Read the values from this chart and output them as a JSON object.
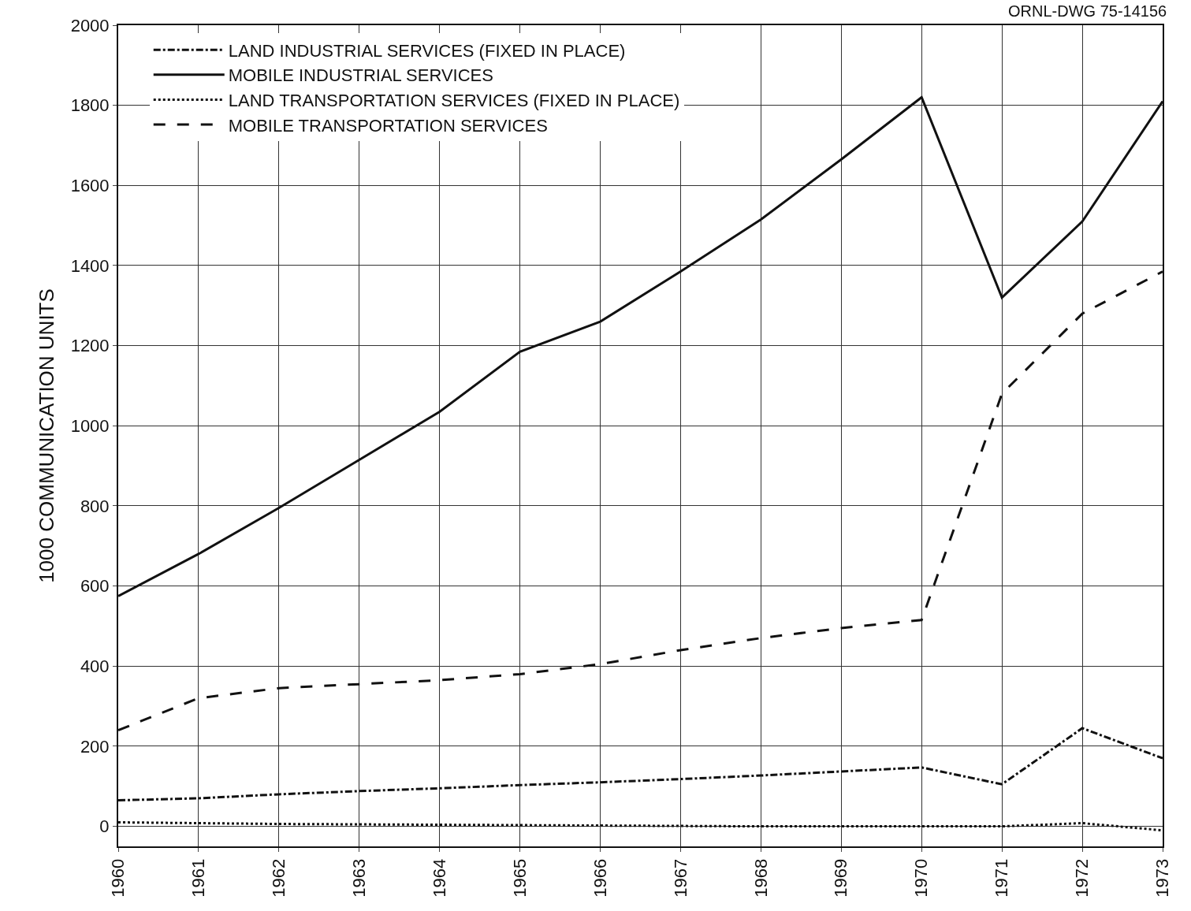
{
  "chart_data": {
    "type": "line",
    "ylabel": "1000 COMMUNICATION UNITS",
    "annotations": [
      "ORNL-DWG 75-14156"
    ],
    "x": [
      1960,
      1961,
      1962,
      1963,
      1964,
      1965,
      1966,
      1967,
      1968,
      1969,
      1970,
      1971,
      1972,
      1973
    ],
    "xlim": [
      1960,
      1973
    ],
    "xticks": [
      1960,
      1961,
      1962,
      1963,
      1964,
      1965,
      1966,
      1967,
      1968,
      1969,
      1970,
      1971,
      1972,
      1973
    ],
    "ylim": [
      -50,
      2000
    ],
    "yticks": [
      0,
      200,
      400,
      600,
      800,
      1000,
      1200,
      1400,
      1600,
      1800,
      2000
    ],
    "grid": true,
    "legend": "top left",
    "marker": "none",
    "series": [
      {
        "name": "LAND INDUSTRIAL SERVICES (FIXED IN PLACE)",
        "color": "#111111",
        "line_style": "dashdot",
        "values": [
          65,
          70,
          80,
          88,
          95,
          103,
          110,
          118,
          127,
          137,
          147,
          105,
          245,
          170
        ]
      },
      {
        "name": "MOBILE INDUSTRIAL SERVICES",
        "color": "#111111",
        "line_style": "solid",
        "values": [
          575,
          680,
          795,
          915,
          1035,
          1185,
          1260,
          1385,
          1515,
          1665,
          1820,
          1320,
          1510,
          1810
        ]
      },
      {
        "name": "LAND TRANSPORTATION SERVICES (FIXED IN PLACE)",
        "color": "#111111",
        "line_style": "dotted",
        "values": [
          10,
          8,
          6,
          5,
          4,
          3,
          2,
          1,
          0,
          0,
          0,
          0,
          8,
          -10
        ]
      },
      {
        "name": "MOBILE TRANSPORTATION SERVICES",
        "color": "#111111",
        "line_style": "dashed",
        "values": [
          240,
          320,
          345,
          355,
          365,
          380,
          405,
          440,
          470,
          495,
          515,
          1080,
          1280,
          1385
        ]
      }
    ]
  }
}
